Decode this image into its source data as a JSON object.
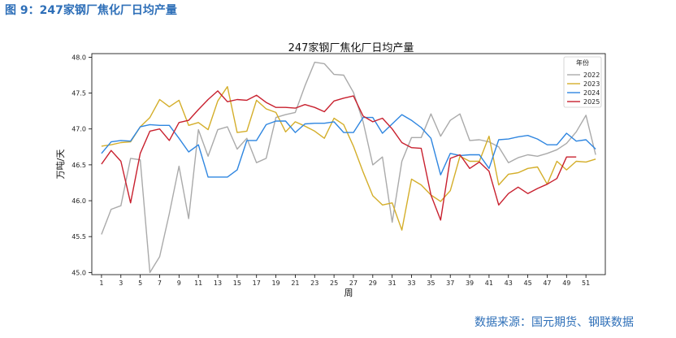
{
  "caption": "图 9：247家钢厂焦化厂日均产量",
  "source": "数据来源：国元期货、钢联数据",
  "chart_data": {
    "type": "line",
    "title": "247家钢厂焦化厂日均产量",
    "xlabel": "周",
    "ylabel": "万吨/天",
    "xlim": [
      0,
      53
    ],
    "ylim": [
      44.97,
      48.05
    ],
    "xticks": [
      1,
      3,
      5,
      7,
      9,
      11,
      13,
      15,
      17,
      19,
      21,
      23,
      25,
      27,
      29,
      31,
      33,
      35,
      37,
      39,
      41,
      43,
      45,
      47,
      49,
      51
    ],
    "yticks": [
      "45.0",
      "45.5",
      "46.0",
      "46.5",
      "47.0",
      "47.5",
      "48.0"
    ],
    "legend": {
      "title": "年份",
      "position": "top-right"
    },
    "grid": false,
    "series": [
      {
        "name": "2022",
        "color": "#aaaaaa",
        "x": [
          1,
          2,
          3,
          4,
          5,
          6,
          7,
          8,
          9,
          10,
          11,
          12,
          13,
          14,
          15,
          16,
          17,
          18,
          19,
          20,
          21,
          22,
          23,
          24,
          25,
          26,
          27,
          28,
          29,
          30,
          31,
          32,
          33,
          34,
          35,
          36,
          37,
          38,
          39,
          40,
          41,
          42,
          43,
          44,
          45,
          46,
          47,
          48,
          49,
          50,
          51,
          52
        ],
        "values": [
          45.53,
          45.88,
          45.93,
          46.59,
          46.57,
          45.0,
          45.22,
          45.82,
          46.48,
          45.75,
          46.99,
          46.62,
          46.99,
          47.03,
          46.72,
          46.87,
          46.53,
          46.59,
          47.16,
          47.2,
          47.23,
          47.6,
          47.93,
          47.91,
          47.76,
          47.75,
          47.51,
          47.1,
          46.5,
          46.61,
          45.7,
          46.55,
          46.88,
          46.88,
          47.21,
          46.9,
          47.12,
          47.21,
          46.84,
          46.85,
          46.82,
          46.75,
          46.53,
          46.6,
          46.64,
          46.62,
          46.66,
          46.71,
          46.8,
          46.96,
          47.19,
          46.64
        ]
      },
      {
        "name": "2023",
        "color": "#d4ae2a",
        "x": [
          1,
          2,
          3,
          4,
          5,
          6,
          7,
          8,
          9,
          10,
          11,
          12,
          13,
          14,
          15,
          16,
          17,
          18,
          19,
          20,
          21,
          22,
          23,
          24,
          25,
          26,
          27,
          28,
          29,
          30,
          31,
          32,
          33,
          34,
          35,
          36,
          37,
          38,
          39,
          40,
          41,
          42,
          43,
          44,
          45,
          46,
          47,
          48,
          49,
          50,
          51,
          52
        ],
        "values": [
          46.76,
          46.78,
          46.81,
          46.82,
          47.03,
          47.16,
          47.41,
          47.31,
          47.4,
          47.05,
          47.09,
          46.99,
          47.39,
          47.59,
          46.95,
          46.97,
          47.4,
          47.28,
          47.23,
          46.96,
          47.1,
          47.04,
          46.97,
          46.87,
          47.15,
          47.06,
          46.76,
          46.4,
          46.07,
          45.94,
          45.97,
          45.59,
          46.3,
          46.22,
          46.08,
          45.99,
          46.14,
          46.62,
          46.55,
          46.55,
          46.9,
          46.22,
          46.37,
          46.39,
          46.45,
          46.47,
          46.23,
          46.55,
          46.43,
          46.55,
          46.54,
          46.58
        ]
      },
      {
        "name": "2024",
        "color": "#2f86e0",
        "x": [
          1,
          2,
          3,
          4,
          5,
          6,
          7,
          8,
          9,
          10,
          11,
          12,
          13,
          14,
          15,
          16,
          17,
          18,
          19,
          20,
          21,
          22,
          23,
          24,
          25,
          26,
          27,
          28,
          29,
          30,
          31,
          32,
          33,
          34,
          35,
          36,
          37,
          38,
          39,
          40,
          41,
          42,
          43,
          44,
          45,
          46,
          47,
          48,
          49,
          50,
          51,
          52
        ],
        "values": [
          46.66,
          46.82,
          46.84,
          46.83,
          47.03,
          47.06,
          47.05,
          47.05,
          46.87,
          46.68,
          46.78,
          46.33,
          46.33,
          46.33,
          46.43,
          46.84,
          46.84,
          47.06,
          47.11,
          47.11,
          46.95,
          47.07,
          47.08,
          47.08,
          47.1,
          46.95,
          46.95,
          47.16,
          47.16,
          46.94,
          47.07,
          47.2,
          47.12,
          47.02,
          46.87,
          46.36,
          46.66,
          46.63,
          46.64,
          46.64,
          46.45,
          46.85,
          46.86,
          46.89,
          46.91,
          46.86,
          46.78,
          46.78,
          46.94,
          46.83,
          46.85,
          46.72
        ]
      },
      {
        "name": "2025",
        "color": "#c8202e",
        "x": [
          1,
          2,
          3,
          4,
          5,
          6,
          7,
          8,
          9,
          10,
          11,
          12,
          13,
          14,
          15,
          16,
          17,
          18,
          19,
          20,
          21,
          22,
          23,
          24,
          25,
          26,
          27,
          28,
          29,
          30,
          31,
          32,
          33,
          34,
          35,
          36,
          37,
          38,
          39,
          40,
          41,
          42,
          43,
          44,
          45,
          46,
          47,
          48,
          49,
          50
        ],
        "values": [
          46.51,
          46.7,
          46.55,
          45.97,
          46.66,
          46.97,
          47.0,
          46.84,
          47.09,
          47.12,
          47.27,
          47.41,
          47.53,
          47.38,
          47.41,
          47.4,
          47.47,
          47.37,
          47.3,
          47.3,
          47.29,
          47.34,
          47.3,
          47.24,
          47.39,
          47.43,
          47.46,
          47.18,
          47.1,
          47.15,
          47.0,
          46.81,
          46.74,
          46.73,
          46.08,
          45.73,
          46.59,
          46.64,
          46.45,
          46.54,
          46.41,
          45.94,
          46.1,
          46.19,
          46.1,
          46.17,
          46.23,
          46.31,
          46.61,
          46.61
        ]
      }
    ]
  }
}
